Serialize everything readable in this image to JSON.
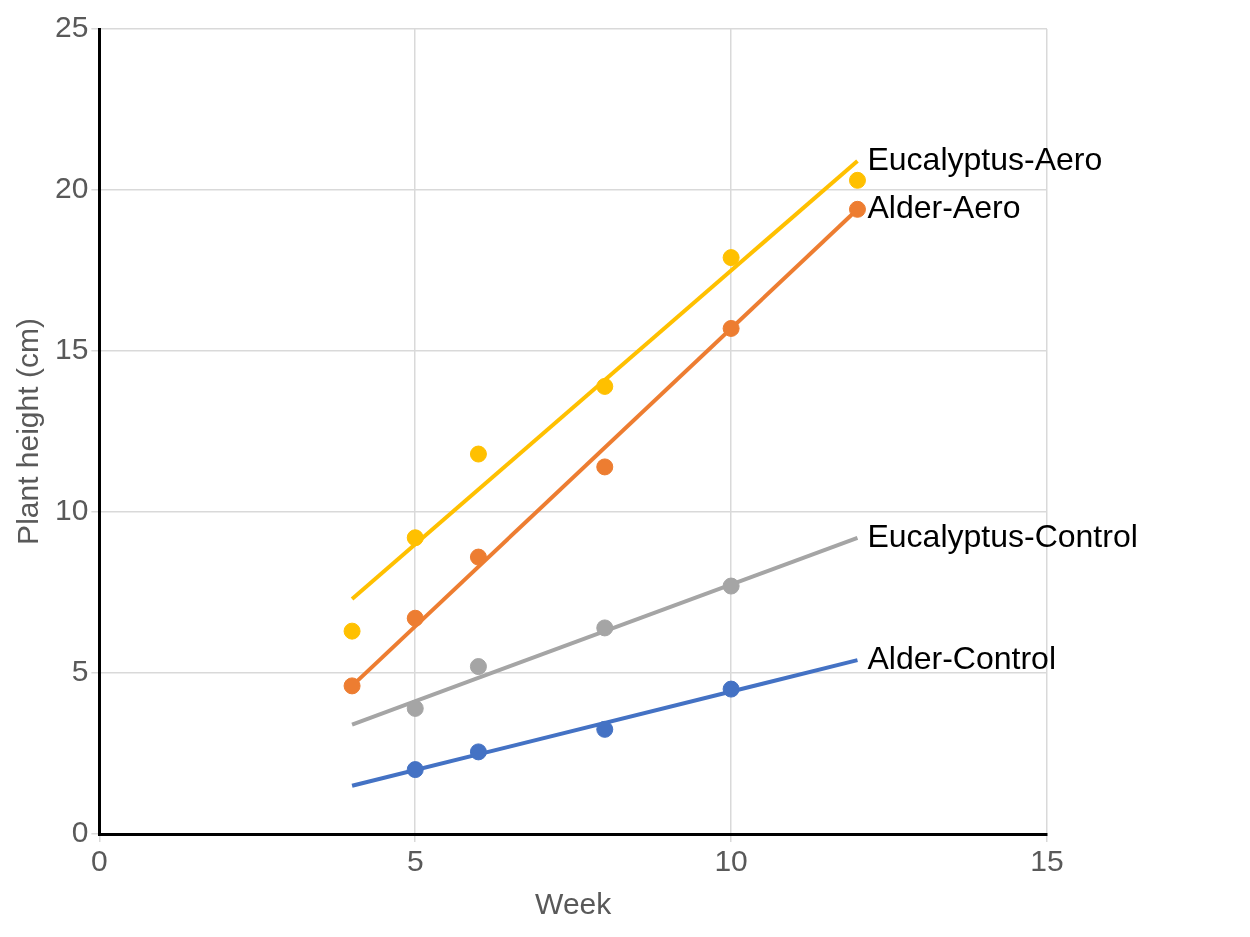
{
  "chart_data": {
    "type": "scatter",
    "xlabel": "Week",
    "ylabel": "Plant height (cm)",
    "xlim": [
      0,
      15
    ],
    "xticks": [
      0,
      5,
      10,
      15
    ],
    "ylim": [
      0,
      25
    ],
    "yticks": [
      0,
      5,
      10,
      15,
      20,
      25
    ],
    "grid": true,
    "legend": false,
    "marker": "circle",
    "series": [
      {
        "color": "#ffc000",
        "x": [
          4,
          5,
          6,
          8,
          10,
          12
        ],
        "values": [
          6.3,
          9.2,
          11.8,
          13.9,
          17.9,
          20.3
        ]
      },
      {
        "color": "#ed7d31",
        "x": [
          4,
          5,
          6,
          8,
          10,
          12
        ],
        "values": [
          4.6,
          6.7,
          8.6,
          11.4,
          15.7,
          19.4
        ]
      },
      {
        "color": "#a5a5a5",
        "x": [
          5,
          6,
          8,
          10
        ],
        "values": [
          3.9,
          5.2,
          6.4,
          7.7
        ]
      },
      {
        "color": "#4472c4",
        "x": [
          5,
          6,
          8,
          10
        ],
        "values": [
          2.0,
          2.55,
          3.25,
          4.5
        ]
      },
      {
        "type": "line",
        "name": "Eucalyptus-Aero",
        "color": "#ffc000",
        "x": [
          4,
          12
        ],
        "values": [
          7.3,
          20.9
        ],
        "marker": "none"
      },
      {
        "type": "line",
        "name": "Alder-Aero",
        "color": "#ed7d31",
        "x": [
          4,
          12
        ],
        "values": [
          4.6,
          19.4
        ],
        "marker": "none"
      },
      {
        "type": "line",
        "name": "Eucalyptus-Control",
        "color": "#a5a5a5",
        "x": [
          4,
          12
        ],
        "values": [
          3.4,
          9.2
        ],
        "marker": "none"
      },
      {
        "type": "line",
        "name": "Alder-Control",
        "color": "#4472c4",
        "x": [
          4,
          12
        ],
        "values": [
          1.5,
          5.4
        ],
        "marker": "none"
      }
    ]
  }
}
